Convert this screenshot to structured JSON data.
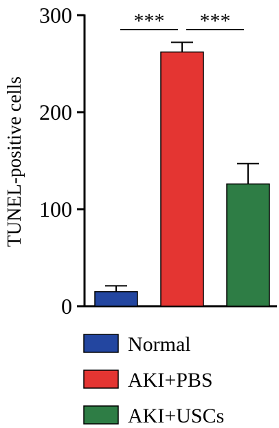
{
  "chart_data": {
    "type": "bar",
    "categories": [
      "Normal",
      "AKI+PBS",
      "AKI+USCs"
    ],
    "values": [
      15,
      262,
      126
    ],
    "errors": [
      6,
      10,
      21
    ],
    "colors": [
      "#2346a0",
      "#e43532",
      "#2e7d45"
    ],
    "ylabel": "TUNEL-positive cells",
    "ylim": [
      0,
      300
    ],
    "yticks": [
      0,
      100,
      200,
      300
    ],
    "significance": [
      {
        "from": 0,
        "to": 1,
        "label": "***"
      },
      {
        "from": 1,
        "to": 2,
        "label": "***"
      }
    ],
    "legend": {
      "placement": "bottom",
      "entries": [
        "Normal",
        "AKI+PBS",
        "AKI+USCs"
      ]
    },
    "grid": false
  }
}
